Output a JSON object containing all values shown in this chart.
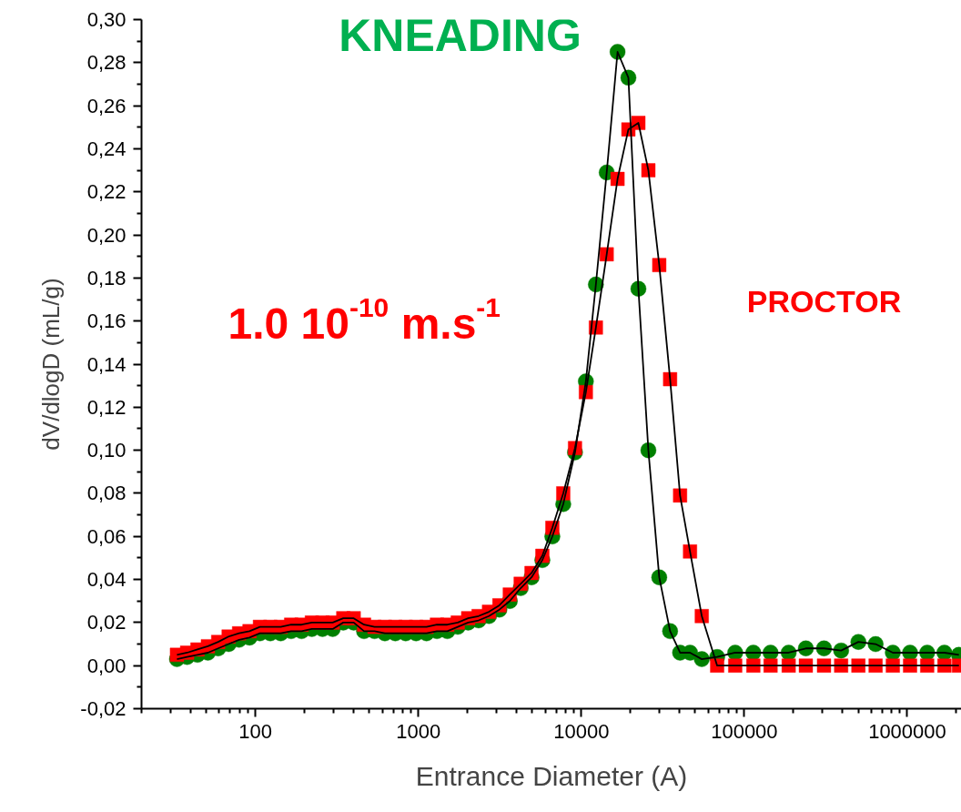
{
  "chart_data": {
    "type": "line",
    "xlabel": "Entrance Diameter (A)",
    "ylabel": "dV/dlogD (mL/g)",
    "log": "x",
    "grid": false,
    "annotations": [
      "1.0 10$^{-10}$ m.s$^{-1}$"
    ],
    "x": [
      33,
      38.1,
      44.1,
      51.1,
      59.1,
      68.5,
      79.4,
      92,
      106.6,
      123.5,
      143,
      165.7,
      192,
      222,
      258,
      298,
      346,
      401,
      464,
      538,
      623,
      722,
      836,
      968,
      1122,
      1300,
      1506,
      1745,
      2021,
      2341,
      2712,
      3141,
      3639,
      4244,
      4946,
      5764,
      6637,
      7743,
      9142,
      10660,
      12280,
      14310,
      16680,
      19440,
      22390,
      25780,
      30060,
      35040,
      40350,
      46440,
      54830,
      68130,
      87930,
      113600,
      144900,
      187200,
      238600,
      308300,
      392800,
      501200,
      639300,
      815400,
      1040000,
      1325000,
      1690000,
      2075000
    ],
    "xlim": [
      20,
      2150000
    ],
    "xticks": [
      100,
      1000,
      10000,
      100000,
      1000000
    ],
    "ylim": [
      -0.02,
      0.3
    ],
    "yticks": [
      {
        "value": -0.02,
        "label": "-0,02"
      },
      {
        "value": 0,
        "label": "0,00"
      },
      {
        "value": 0.02,
        "label": "0,02"
      },
      {
        "value": 0.04,
        "label": "0,04"
      },
      {
        "value": 0.06,
        "label": "0,06"
      },
      {
        "value": 0.08,
        "label": "0,08"
      },
      {
        "value": 0.1,
        "label": "0,10"
      },
      {
        "value": 0.12,
        "label": "0,12"
      },
      {
        "value": 0.14,
        "label": "0,14"
      },
      {
        "value": 0.16,
        "label": "0,16"
      },
      {
        "value": 0.18,
        "label": "0,18"
      },
      {
        "value": 0.2,
        "label": "0,20"
      },
      {
        "value": 0.22,
        "label": "0,22"
      },
      {
        "value": 0.24,
        "label": "0,24"
      },
      {
        "value": 0.26,
        "label": "0,26"
      },
      {
        "value": 0.28,
        "label": "0,28"
      },
      {
        "value": 0.3,
        "label": "0,30"
      }
    ],
    "series": [
      {
        "name": "KNEADING",
        "color": "#008000",
        "marker": "circle",
        "values": [
          0.003,
          0.004,
          0.005,
          0.006,
          0.008,
          0.01,
          0.012,
          0.013,
          0.015,
          0.015,
          0.015,
          0.016,
          0.016,
          0.017,
          0.017,
          0.017,
          0.02,
          0.02,
          0.016,
          0.016,
          0.015,
          0.015,
          0.015,
          0.015,
          0.015,
          0.016,
          0.016,
          0.018,
          0.02,
          0.021,
          0.023,
          0.026,
          0.03,
          0.036,
          0.041,
          0.049,
          0.06,
          0.075,
          0.099,
          0.132,
          0.177,
          0.229,
          0.285,
          0.273,
          0.175,
          0.1,
          0.041,
          0.016,
          0.006,
          0.006,
          0.003,
          0.004,
          0.006,
          0.006,
          0.006,
          0.006,
          0.008,
          0.008,
          0.007,
          0.011,
          0.01,
          0.006,
          0.006,
          0.006,
          0.006,
          0.005
        ]
      },
      {
        "name": "PROCTOR",
        "color": "#ff0000",
        "marker": "square",
        "values": [
          0.005,
          0.006,
          0.0075,
          0.009,
          0.011,
          0.0135,
          0.015,
          0.016,
          0.018,
          0.018,
          0.018,
          0.019,
          0.019,
          0.02,
          0.02,
          0.02,
          0.022,
          0.022,
          0.019,
          0.018,
          0.018,
          0.018,
          0.018,
          0.018,
          0.018,
          0.019,
          0.019,
          0.02,
          0.022,
          0.023,
          0.025,
          0.028,
          0.033,
          0.038,
          0.043,
          0.051,
          0.064,
          0.08,
          0.101,
          0.127,
          0.157,
          0.191,
          0.226,
          0.249,
          0.252,
          0.23,
          0.186,
          0.133,
          0.079,
          0.053,
          0.023,
          0,
          0,
          0,
          0,
          0,
          0,
          0,
          0,
          0,
          0,
          0,
          0,
          0,
          0,
          0
        ]
      }
    ]
  }
}
